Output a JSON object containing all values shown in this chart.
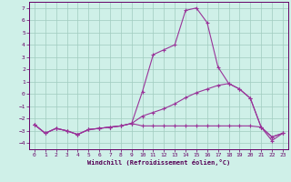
{
  "xlabel": "Windchill (Refroidissement éolien,°C)",
  "background_color": "#cff0e8",
  "grid_color": "#a0ccbf",
  "line_color": "#993399",
  "x": [
    0,
    1,
    2,
    3,
    4,
    5,
    6,
    7,
    8,
    9,
    10,
    11,
    12,
    13,
    14,
    15,
    16,
    17,
    18,
    19,
    20,
    21,
    22,
    23
  ],
  "line1": [
    -2.5,
    -3.2,
    -2.8,
    -3.0,
    -3.3,
    -2.9,
    -2.8,
    -2.7,
    -2.6,
    -2.4,
    0.2,
    3.2,
    3.6,
    4.0,
    6.8,
    7.0,
    5.8,
    2.2,
    0.85,
    0.4,
    -0.35,
    -2.7,
    -3.5,
    -3.2
  ],
  "line2": [
    -2.5,
    -3.2,
    -2.8,
    -3.0,
    -3.3,
    -2.9,
    -2.8,
    -2.7,
    -2.6,
    -2.4,
    -1.8,
    -1.5,
    -1.2,
    -0.8,
    -0.3,
    0.1,
    0.4,
    0.7,
    0.85,
    0.4,
    -0.35,
    -2.7,
    -3.5,
    -3.2
  ],
  "line3": [
    -2.5,
    -3.2,
    -2.8,
    -3.0,
    -3.3,
    -2.9,
    -2.8,
    -2.7,
    -2.6,
    -2.4,
    -2.6,
    -2.6,
    -2.6,
    -2.6,
    -2.6,
    -2.6,
    -2.6,
    -2.6,
    -2.6,
    -2.6,
    -2.6,
    -2.7,
    -3.8,
    -3.2
  ],
  "ylim": [
    -4.5,
    7.5
  ],
  "xlim": [
    -0.5,
    23.5
  ],
  "yticks": [
    -4,
    -3,
    -2,
    -1,
    0,
    1,
    2,
    3,
    4,
    5,
    6,
    7
  ],
  "xticks": [
    0,
    1,
    2,
    3,
    4,
    5,
    6,
    7,
    8,
    9,
    10,
    11,
    12,
    13,
    14,
    15,
    16,
    17,
    18,
    19,
    20,
    21,
    22,
    23
  ]
}
